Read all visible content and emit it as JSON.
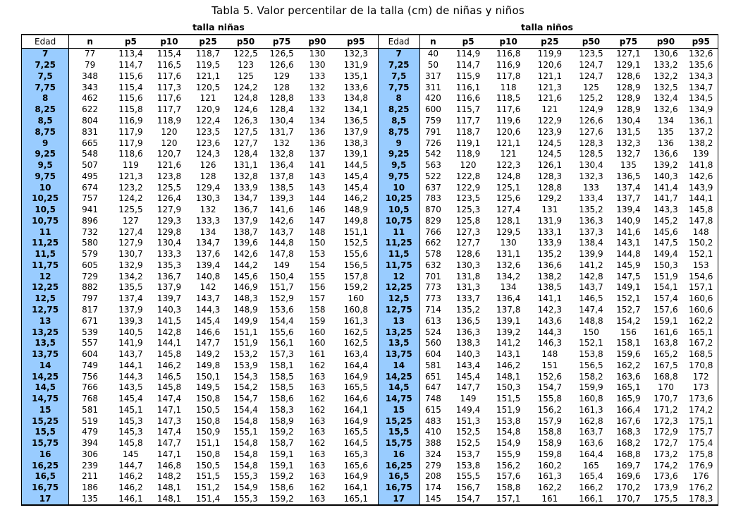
{
  "title": "Tabla 5.  Valor  percentilar de la talla (cm) de niñas y niños",
  "girls_label": "talla niñas",
  "boys_label": "talla niños",
  "columns": [
    "Edad",
    "n",
    "p5",
    "p10",
    "p25",
    "p50",
    "p75",
    "p90",
    "p95"
  ],
  "rows": [
    {
      "edad": "7",
      "g": [
        "77",
        "113,4",
        "115,4",
        "118,7",
        "122,5",
        "126,5",
        "130",
        "132,3"
      ],
      "b": [
        "40",
        "114,9",
        "116,8",
        "119,9",
        "123,5",
        "127,1",
        "130,6",
        "132,6"
      ]
    },
    {
      "edad": "7,25",
      "g": [
        "79",
        "114,7",
        "116,5",
        "119,5",
        "123",
        "126,6",
        "130",
        "131,9"
      ],
      "b": [
        "50",
        "114,7",
        "116,9",
        "120,6",
        "124,7",
        "129,1",
        "133,2",
        "135,6"
      ]
    },
    {
      "edad": "7,5",
      "g": [
        "348",
        "115,6",
        "117,6",
        "121,1",
        "125",
        "129",
        "133",
        "135,1"
      ],
      "b": [
        "317",
        "115,9",
        "117,8",
        "121,1",
        "124,7",
        "128,6",
        "132,2",
        "134,3"
      ]
    },
    {
      "edad": "7,75",
      "g": [
        "343",
        "115,4",
        "117,3",
        "120,5",
        "124,2",
        "128",
        "132",
        "133,6"
      ],
      "b": [
        "311",
        "116,1",
        "118",
        "121,3",
        "125",
        "128,9",
        "132,5",
        "134,7"
      ]
    },
    {
      "edad": "8",
      "g": [
        "462",
        "115,6",
        "117,6",
        "121",
        "124,8",
        "128,8",
        "133",
        "134,8"
      ],
      "b": [
        "420",
        "116,6",
        "118,5",
        "121,6",
        "125,2",
        "128,9",
        "132,4",
        "134,5"
      ]
    },
    {
      "edad": "8,25",
      "g": [
        "622",
        "115,8",
        "117,7",
        "120,9",
        "124,6",
        "128,4",
        "132",
        "134,1"
      ],
      "b": [
        "600",
        "115,7",
        "117,6",
        "121",
        "124,9",
        "128,9",
        "132,6",
        "134,9"
      ]
    },
    {
      "edad": "8,5",
      "g": [
        "804",
        "116,9",
        "118,9",
        "122,4",
        "126,3",
        "130,4",
        "134",
        "136,5"
      ],
      "b": [
        "759",
        "117,7",
        "119,6",
        "122,9",
        "126,6",
        "130,4",
        "134",
        "136,1"
      ]
    },
    {
      "edad": "8,75",
      "g": [
        "831",
        "117,9",
        "120",
        "123,5",
        "127,5",
        "131,7",
        "136",
        "137,9"
      ],
      "b": [
        "791",
        "118,7",
        "120,6",
        "123,9",
        "127,6",
        "131,5",
        "135",
        "137,2"
      ]
    },
    {
      "edad": "9",
      "g": [
        "665",
        "117,9",
        "120",
        "123,6",
        "127,7",
        "132",
        "136",
        "138,3"
      ],
      "b": [
        "726",
        "119,1",
        "121,1",
        "124,5",
        "128,3",
        "132,3",
        "136",
        "138,2"
      ]
    },
    {
      "edad": "9,25",
      "g": [
        "548",
        "118,6",
        "120,7",
        "124,3",
        "128,4",
        "132,8",
        "137",
        "139,1"
      ],
      "b": [
        "542",
        "118,9",
        "121",
        "124,5",
        "128,5",
        "132,7",
        "136,6",
        "139"
      ]
    },
    {
      "edad": "9,5",
      "g": [
        "507",
        "119",
        "121,6",
        "126",
        "131,1",
        "136,4",
        "141",
        "144,5"
      ],
      "b": [
        "563",
        "120",
        "122,3",
        "126,1",
        "130,4",
        "135",
        "139,2",
        "141,8"
      ]
    },
    {
      "edad": "9,75",
      "g": [
        "495",
        "121,3",
        "123,8",
        "128",
        "132,8",
        "137,8",
        "143",
        "145,4"
      ],
      "b": [
        "522",
        "122,8",
        "124,8",
        "128,3",
        "132,3",
        "136,5",
        "140,3",
        "142,6"
      ]
    },
    {
      "edad": "10",
      "g": [
        "674",
        "123,2",
        "125,5",
        "129,4",
        "133,9",
        "138,5",
        "143",
        "145,4"
      ],
      "b": [
        "637",
        "122,9",
        "125,1",
        "128,8",
        "133",
        "137,4",
        "141,4",
        "143,9"
      ]
    },
    {
      "edad": "10,25",
      "g": [
        "757",
        "124,2",
        "126,4",
        "130,3",
        "134,7",
        "139,3",
        "144",
        "146,2"
      ],
      "b": [
        "783",
        "123,5",
        "125,6",
        "129,2",
        "133,4",
        "137,7",
        "141,7",
        "144,1"
      ]
    },
    {
      "edad": "10,5",
      "g": [
        "941",
        "125,5",
        "127,9",
        "132",
        "136,7",
        "141,6",
        "146",
        "148,9"
      ],
      "b": [
        "870",
        "125,3",
        "127,4",
        "131",
        "135,2",
        "139,4",
        "143,3",
        "145,8"
      ]
    },
    {
      "edad": "10,75",
      "g": [
        "896",
        "127",
        "129,3",
        "133,3",
        "137,9",
        "142,6",
        "147",
        "149,8"
      ],
      "b": [
        "829",
        "125,8",
        "128,1",
        "131,9",
        "136,3",
        "140,9",
        "145,2",
        "147,8"
      ]
    },
    {
      "edad": "11",
      "g": [
        "732",
        "127,4",
        "129,8",
        "134",
        "138,7",
        "143,7",
        "148",
        "151,1"
      ],
      "b": [
        "766",
        "127,3",
        "129,5",
        "133,1",
        "137,3",
        "141,6",
        "145,6",
        "148"
      ]
    },
    {
      "edad": "11,25",
      "g": [
        "580",
        "127,9",
        "130,4",
        "134,7",
        "139,6",
        "144,8",
        "150",
        "152,5"
      ],
      "b": [
        "662",
        "127,7",
        "130",
        "133,9",
        "138,4",
        "143,1",
        "147,5",
        "150,2"
      ]
    },
    {
      "edad": "11,5",
      "g": [
        "579",
        "130,7",
        "133,3",
        "137,6",
        "142,6",
        "147,8",
        "153",
        "155,6"
      ],
      "b": [
        "578",
        "128,6",
        "131,1",
        "135,2",
        "139,9",
        "144,8",
        "149,4",
        "152,1"
      ]
    },
    {
      "edad": "11,75",
      "g": [
        "605",
        "132,9",
        "135,3",
        "139,4",
        "144,2",
        "149",
        "154",
        "156,5"
      ],
      "b": [
        "632",
        "130,3",
        "132,6",
        "136,6",
        "141,2",
        "145,9",
        "150,3",
        "153"
      ]
    },
    {
      "edad": "12",
      "g": [
        "729",
        "134,2",
        "136,7",
        "140,8",
        "145,6",
        "150,4",
        "155",
        "157,8"
      ],
      "b": [
        "701",
        "131,8",
        "134,2",
        "138,2",
        "142,8",
        "147,5",
        "151,9",
        "154,6"
      ]
    },
    {
      "edad": "12,25",
      "g": [
        "882",
        "135,5",
        "137,9",
        "142",
        "146,9",
        "151,7",
        "156",
        "159,2"
      ],
      "b": [
        "773",
        "131,3",
        "134",
        "138,5",
        "143,7",
        "149,1",
        "154,1",
        "157,1"
      ]
    },
    {
      "edad": "12,5",
      "g": [
        "797",
        "137,4",
        "139,7",
        "143,7",
        "148,3",
        "152,9",
        "157",
        "160"
      ],
      "b": [
        "773",
        "133,7",
        "136,4",
        "141,1",
        "146,5",
        "152,1",
        "157,4",
        "160,6"
      ]
    },
    {
      "edad": "12,75",
      "g": [
        "817",
        "137,9",
        "140,3",
        "144,3",
        "148,9",
        "153,6",
        "158",
        "160,8"
      ],
      "b": [
        "714",
        "135,2",
        "137,8",
        "142,3",
        "147,4",
        "152,7",
        "157,6",
        "160,6"
      ]
    },
    {
      "edad": "13",
      "g": [
        "671",
        "139,3",
        "141,5",
        "145,4",
        "149,9",
        "154,4",
        "159",
        "161,3"
      ],
      "b": [
        "613",
        "136,5",
        "139,1",
        "143,6",
        "148,8",
        "154,2",
        "159,1",
        "162,2"
      ]
    },
    {
      "edad": "13,25",
      "g": [
        "539",
        "140,5",
        "142,8",
        "146,6",
        "151,1",
        "155,6",
        "160",
        "162,5"
      ],
      "b": [
        "524",
        "136,3",
        "139,2",
        "144,3",
        "150",
        "156",
        "161,6",
        "165,1"
      ]
    },
    {
      "edad": "13,5",
      "g": [
        "557",
        "141,9",
        "144,1",
        "147,7",
        "151,9",
        "156,1",
        "160",
        "162,5"
      ],
      "b": [
        "560",
        "138,3",
        "141,2",
        "146,3",
        "152,1",
        "158,1",
        "163,8",
        "167,2"
      ]
    },
    {
      "edad": "13,75",
      "g": [
        "604",
        "143,7",
        "145,8",
        "149,2",
        "153,2",
        "157,3",
        "161",
        "163,4"
      ],
      "b": [
        "604",
        "140,3",
        "143,1",
        "148",
        "153,8",
        "159,6",
        "165,2",
        "168,5"
      ]
    },
    {
      "edad": "14",
      "g": [
        "749",
        "144,1",
        "146,2",
        "149,8",
        "153,9",
        "158,1",
        "162",
        "164,4"
      ],
      "b": [
        "581",
        "143,4",
        "146,2",
        "151",
        "156,5",
        "162,2",
        "167,5",
        "170,8"
      ]
    },
    {
      "edad": "14,25",
      "g": [
        "756",
        "144,3",
        "146,5",
        "150,1",
        "154,3",
        "158,5",
        "163",
        "164,9"
      ],
      "b": [
        "651",
        "145,4",
        "148,1",
        "152,6",
        "158,2",
        "163,6",
        "168,8",
        "172"
      ]
    },
    {
      "edad": "14,5",
      "g": [
        "766",
        "143,5",
        "145,8",
        "149,5",
        "154,2",
        "158,5",
        "163",
        "165,5"
      ],
      "b": [
        "647",
        "147,7",
        "150,3",
        "154,7",
        "159,9",
        "165,1",
        "170",
        "173"
      ]
    },
    {
      "edad": "14,75",
      "g": [
        "768",
        "145,4",
        "147,4",
        "150,8",
        "154,7",
        "158,6",
        "162",
        "164,6"
      ],
      "b": [
        "748",
        "149",
        "151,5",
        "155,8",
        "160,8",
        "165,9",
        "170,7",
        "173,6"
      ]
    },
    {
      "edad": "15",
      "g": [
        "581",
        "145,1",
        "147,1",
        "150,5",
        "154,4",
        "158,3",
        "162",
        "164,1"
      ],
      "b": [
        "615",
        "149,4",
        "151,9",
        "156,2",
        "161,3",
        "166,4",
        "171,2",
        "174,2"
      ]
    },
    {
      "edad": "15,25",
      "g": [
        "519",
        "145,3",
        "147,3",
        "150,8",
        "154,8",
        "158,9",
        "163",
        "164,9"
      ],
      "b": [
        "483",
        "151,3",
        "153,8",
        "157,9",
        "162,8",
        "167,6",
        "172,3",
        "175,1"
      ]
    },
    {
      "edad": "15,5",
      "g": [
        "479",
        "145,3",
        "147,4",
        "150,9",
        "155,1",
        "159,2",
        "163",
        "165,5"
      ],
      "b": [
        "410",
        "152,5",
        "154,8",
        "158,8",
        "163,7",
        "168,3",
        "172,9",
        "175,7"
      ]
    },
    {
      "edad": "15,75",
      "g": [
        "394",
        "145,8",
        "147,7",
        "151,1",
        "154,8",
        "158,7",
        "162",
        "164,5"
      ],
      "b": [
        "388",
        "152,5",
        "154,9",
        "158,9",
        "163,6",
        "168,2",
        "172,7",
        "175,4"
      ]
    },
    {
      "edad": "16",
      "g": [
        "306",
        "145",
        "147,1",
        "150,8",
        "154,8",
        "159,1",
        "163",
        "165,3"
      ],
      "b": [
        "324",
        "153,7",
        "155,9",
        "159,8",
        "164,4",
        "168,8",
        "173,2",
        "175,8"
      ]
    },
    {
      "edad": "16,25",
      "g": [
        "239",
        "144,7",
        "146,8",
        "150,5",
        "154,8",
        "159,1",
        "163",
        "165,6"
      ],
      "b": [
        "279",
        "153,8",
        "156,2",
        "160,2",
        "165",
        "169,7",
        "174,2",
        "176,9"
      ]
    },
    {
      "edad": "16,5",
      "g": [
        "211",
        "146,2",
        "148,2",
        "151,5",
        "155,3",
        "159,2",
        "163",
        "164,9"
      ],
      "b": [
        "208",
        "155,5",
        "157,6",
        "161,3",
        "165,4",
        "169,6",
        "173,6",
        "176"
      ]
    },
    {
      "edad": "16,75",
      "g": [
        "186",
        "146,2",
        "148,1",
        "151,2",
        "154,9",
        "158,6",
        "162",
        "164,1"
      ],
      "b": [
        "174",
        "156,7",
        "158,8",
        "162,2",
        "166,2",
        "170,2",
        "173,9",
        "176,2"
      ]
    },
    {
      "edad": "17",
      "g": [
        "135",
        "146,1",
        "148,1",
        "151,4",
        "155,3",
        "159,2",
        "163",
        "165,1"
      ],
      "b": [
        "145",
        "154,7",
        "157,1",
        "161",
        "166,1",
        "170,7",
        "175,5",
        "178,3"
      ]
    }
  ]
}
